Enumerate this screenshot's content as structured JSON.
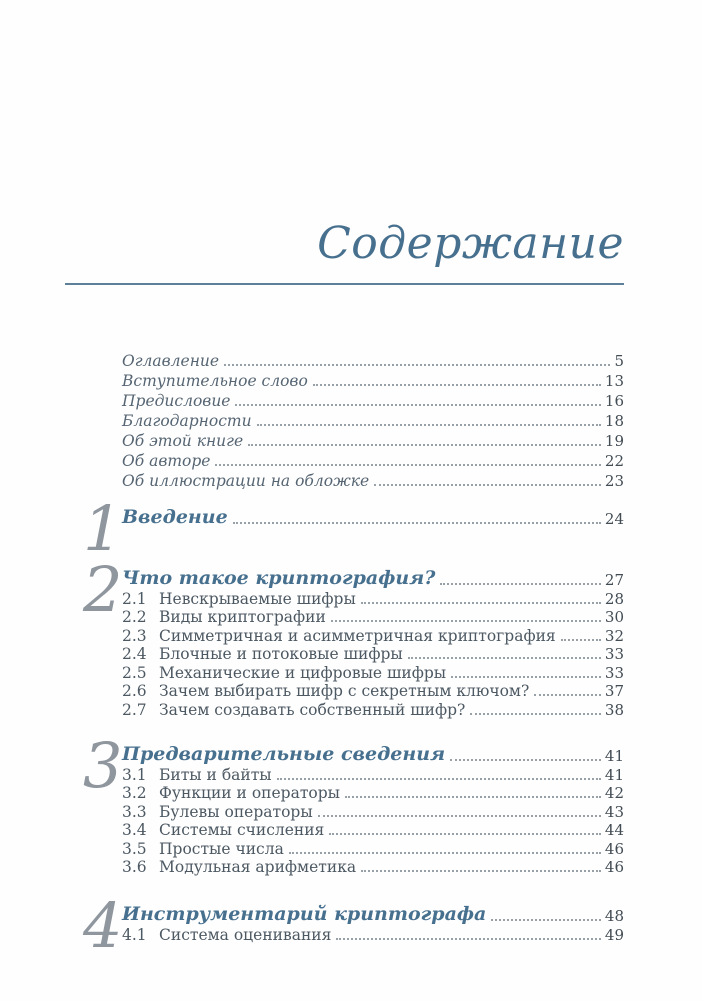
{
  "toc": {
    "title": "Содержание",
    "front_matter": [
      {
        "label": "Оглавление",
        "page": "5"
      },
      {
        "label": "Вступительное слово",
        "page": "13"
      },
      {
        "label": "Предисловие",
        "page": "16"
      },
      {
        "label": "Благодарности",
        "page": "18"
      },
      {
        "label": "Об этой книге",
        "page": "19"
      },
      {
        "label": "Об авторе",
        "page": "22"
      },
      {
        "label": "Об иллюстрации на обложке",
        "page": "23"
      }
    ],
    "chapters": [
      {
        "number": "1",
        "title": "Введение",
        "page": "24",
        "sections": []
      },
      {
        "number": "2",
        "title": "Что такое криптография?",
        "page": "27",
        "sections": [
          {
            "num": "2.1",
            "label": "Невскрываемые шифры",
            "page": "28"
          },
          {
            "num": "2.2",
            "label": "Виды криптографии",
            "page": "30"
          },
          {
            "num": "2.3",
            "label": "Симметричная и асимметричная криптография",
            "page": "32"
          },
          {
            "num": "2.4",
            "label": "Блочные и потоковые шифры",
            "page": "33"
          },
          {
            "num": "2.5",
            "label": "Механические и цифровые шифры",
            "page": "33"
          },
          {
            "num": "2.6",
            "label": "Зачем выбирать шифр с секретным ключом?",
            "page": "37"
          },
          {
            "num": "2.7",
            "label": "Зачем создавать собственный шифр?",
            "page": "38"
          }
        ]
      },
      {
        "number": "3",
        "title": "Предварительные сведения",
        "page": "41",
        "sections": [
          {
            "num": "3.1",
            "label": "Биты и байты",
            "page": "41"
          },
          {
            "num": "3.2",
            "label": "Функции и операторы",
            "page": "42"
          },
          {
            "num": "3.3",
            "label": "Булевы операторы",
            "page": "43"
          },
          {
            "num": "3.4",
            "label": "Системы счисления",
            "page": "44"
          },
          {
            "num": "3.5",
            "label": "Простые числа",
            "page": "46"
          },
          {
            "num": "3.6",
            "label": "Модульная арифметика",
            "page": "46"
          }
        ]
      },
      {
        "number": "4",
        "title": "Инструментарий криптографа",
        "page": "48",
        "sections": [
          {
            "num": "4.1",
            "label": "Система оценивания",
            "page": "49"
          }
        ]
      }
    ]
  },
  "colors": {
    "accent": "#47708f",
    "chapter_number": "#8f969e",
    "body_text": "#4c5862",
    "front_matter_text": "#566573",
    "page_number": "#424c54",
    "leader": "#98a0a8",
    "rule": "#5d7f98",
    "paper": "#fefefe"
  }
}
